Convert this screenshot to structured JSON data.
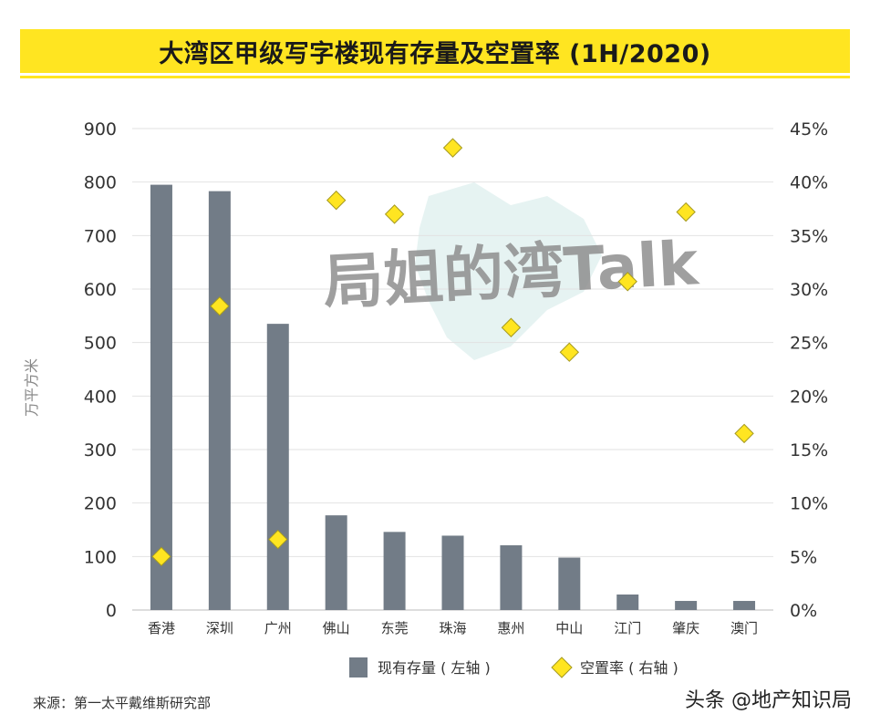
{
  "title": "大湾区甲级写字楼现有存量及空置率 (1H/2020)",
  "source": "来源：第一太平戴维斯研究部",
  "credit": "头条 @地产知识局",
  "watermark": "局姐的湾Talk",
  "chart_data": {
    "type": "bar",
    "categories": [
      "香港",
      "深圳",
      "广州",
      "佛山",
      "东莞",
      "珠海",
      "惠州",
      "中山",
      "江门",
      "肇庆",
      "澳门"
    ],
    "series": [
      {
        "name": "现有存量 ( 左轴 )",
        "type": "bar",
        "axis": "left",
        "color": "#727c87",
        "values": [
          795,
          783,
          535,
          177,
          146,
          139,
          121,
          98,
          29,
          17,
          17
        ]
      },
      {
        "name": "空置率 ( 右轴 )",
        "type": "scatter",
        "axis": "right",
        "color": "#ffe521",
        "values": [
          5.0,
          28.4,
          6.6,
          38.3,
          37.0,
          43.2,
          26.4,
          24.1,
          30.7,
          37.2,
          16.5
        ]
      }
    ],
    "ylabel": "万平方米",
    "ylim": [
      0,
      900
    ],
    "yticks": [
      "0",
      "100",
      "200",
      "300",
      "400",
      "500",
      "600",
      "700",
      "800",
      "900"
    ],
    "y2lim": [
      0,
      45
    ],
    "y2ticks": [
      "0%",
      "5%",
      "10%",
      "15%",
      "20%",
      "25%",
      "30%",
      "35%",
      "40%",
      "45%"
    ],
    "grid": true,
    "legend": "bottom"
  }
}
